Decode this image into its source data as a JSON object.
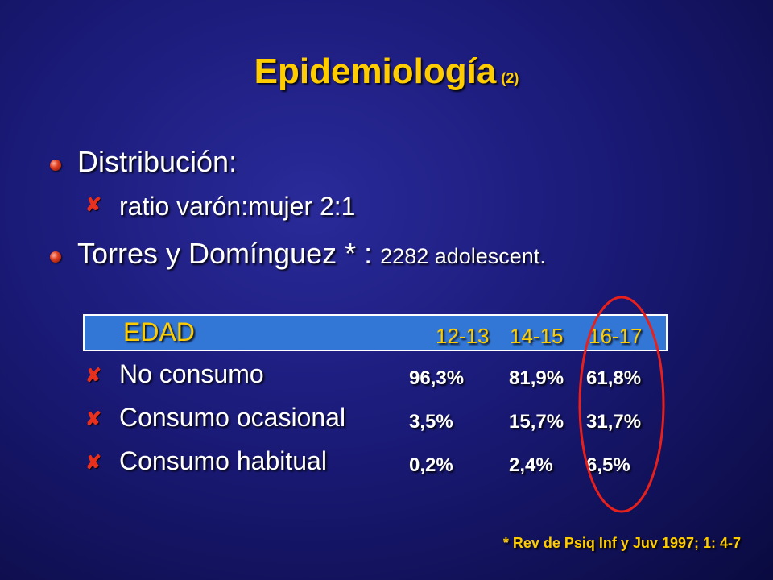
{
  "title": {
    "main": "Epidemiología",
    "sub": "(2)"
  },
  "bullets": [
    {
      "text": "Distribución:"
    },
    {
      "text": "Torres y Domínguez * :",
      "detail": "2282 adolescent."
    }
  ],
  "sub_bullets": [
    {
      "text": "ratio varón:mujer 2:1"
    }
  ],
  "table": {
    "header_label": "EDAD",
    "columns": [
      "12-13",
      "14-15",
      "16-17"
    ],
    "rows": [
      {
        "label": "No consumo",
        "values": [
          "96,3%",
          "81,9%",
          "61,8%"
        ]
      },
      {
        "label": "Consumo ocasional",
        "values": [
          "3,5%",
          "15,7%",
          "31,7%"
        ]
      },
      {
        "label": "Consumo habitual",
        "values": [
          "0,2%",
          "2,4%",
          "6,5%"
        ]
      }
    ]
  },
  "reference": "* Rev de Psiq Inf y Juv 1997; 1: 4-7",
  "colors": {
    "background": "#1a1a78",
    "title": "#ffcc00",
    "accent_red": "#e8301c",
    "header_fill": "#3377d6"
  }
}
